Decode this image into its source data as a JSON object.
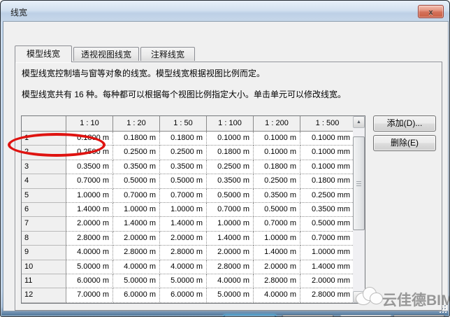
{
  "window": {
    "title": "线宽"
  },
  "icons": {
    "close": "x",
    "scroll_up": "▲",
    "scroll_down": "▼"
  },
  "tabs": [
    {
      "label": "模型线宽",
      "active": true
    },
    {
      "label": "透视视图线宽",
      "active": false
    },
    {
      "label": "注释线宽",
      "active": false
    }
  ],
  "description": {
    "line1": "模型线宽控制墙与窗等对象的线宽。模型线宽根据视图比例而定。",
    "line2": "模型线宽共有 16 种。每种都可以根据每个视图比例指定大小。单击单元可以修改线宽。"
  },
  "table": {
    "columns": [
      "1 : 10",
      "1 : 20",
      "1 : 50",
      "1 : 100",
      "1 : 200",
      "1 : 500"
    ],
    "rows": [
      {
        "num": "1",
        "values": [
          "0.1800 m",
          "0.1800 m",
          "0.1800 m",
          "0.1000 m",
          "0.1000 m",
          "0.1000 mm"
        ]
      },
      {
        "num": "2",
        "values": [
          "0.2500 m",
          "0.2500 m",
          "0.2500 m",
          "0.1800 m",
          "0.1000 m",
          "0.1000 mm"
        ]
      },
      {
        "num": "3",
        "values": [
          "0.3500 m",
          "0.3500 m",
          "0.3500 m",
          "0.2500 m",
          "0.1800 m",
          "0.1000 mm"
        ]
      },
      {
        "num": "4",
        "values": [
          "0.7000 m",
          "0.5000 m",
          "0.5000 m",
          "0.3500 m",
          "0.2500 m",
          "0.1800 mm"
        ]
      },
      {
        "num": "5",
        "values": [
          "1.0000 m",
          "0.7000 m",
          "0.7000 m",
          "0.5000 m",
          "0.3500 m",
          "0.2500 mm"
        ]
      },
      {
        "num": "6",
        "values": [
          "1.4000 m",
          "1.0000 m",
          "1.0000 m",
          "0.7000 m",
          "0.5000 m",
          "0.3500 mm"
        ]
      },
      {
        "num": "7",
        "values": [
          "2.0000 m",
          "1.4000 m",
          "1.4000 m",
          "1.0000 m",
          "0.7000 m",
          "0.5000 mm"
        ]
      },
      {
        "num": "8",
        "values": [
          "2.8000 m",
          "2.0000 m",
          "2.0000 m",
          "1.4000 m",
          "1.0000 m",
          "0.7000 mm"
        ]
      },
      {
        "num": "9",
        "values": [
          "4.0000 m",
          "2.8000 m",
          "2.8000 m",
          "2.0000 m",
          "1.4000 m",
          "1.0000 mm"
        ]
      },
      {
        "num": "10",
        "values": [
          "5.0000 m",
          "4.0000 m",
          "4.0000 m",
          "2.8000 m",
          "2.0000 m",
          "1.4000 mm"
        ]
      },
      {
        "num": "11",
        "values": [
          "6.0000 m",
          "5.0000 m",
          "5.0000 m",
          "4.0000 m",
          "2.8000 m",
          "2.0000 mm"
        ]
      },
      {
        "num": "12",
        "values": [
          "7.0000 m",
          "6.0000 m",
          "6.0000 m",
          "5.0000 m",
          "4.0000 m",
          "2.8000 mm"
        ]
      }
    ],
    "annotation": {
      "type": "red-ellipse",
      "around_row": "3",
      "around_column": "1 : 10",
      "color": "#df1310"
    }
  },
  "side_buttons": {
    "add": "添加(D)...",
    "delete": "删除(E)"
  },
  "bottom_buttons": {
    "ok": "确定",
    "cancel": "取消",
    "apply": "应用"
  },
  "watermark": {
    "text": "云佳德BIM"
  },
  "colors": {
    "annotation_red": "#df1310",
    "dialog_bg": "#f0f0f0",
    "frame_blue": "#bed3ea"
  }
}
